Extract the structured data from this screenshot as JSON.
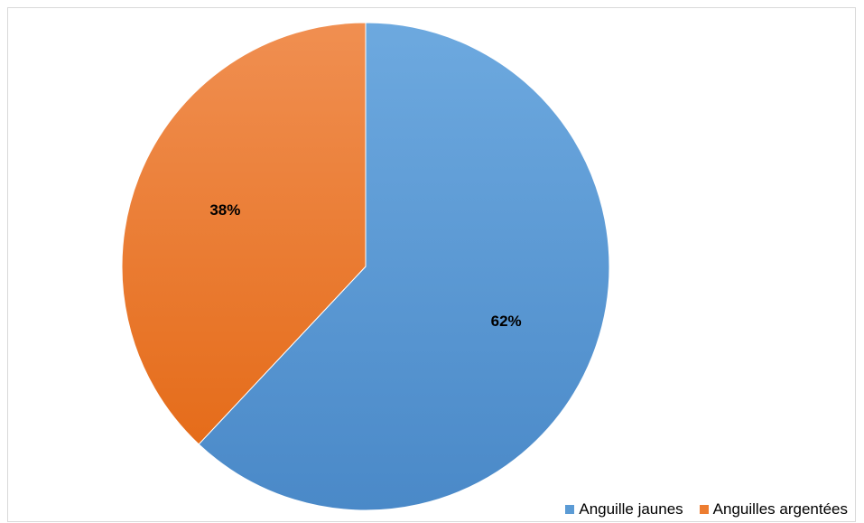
{
  "chart_data": {
    "type": "pie",
    "categories": [
      "Anguille jaunes",
      "Anguilles argentées"
    ],
    "values": [
      62,
      38
    ],
    "data_labels": [
      "62%",
      "38%"
    ],
    "colors": [
      "#5b9bd5",
      "#ed7d31"
    ],
    "start_angle": "top (12 o'clock)",
    "direction": "clockwise",
    "legend": "bottom-right",
    "title": ""
  }
}
